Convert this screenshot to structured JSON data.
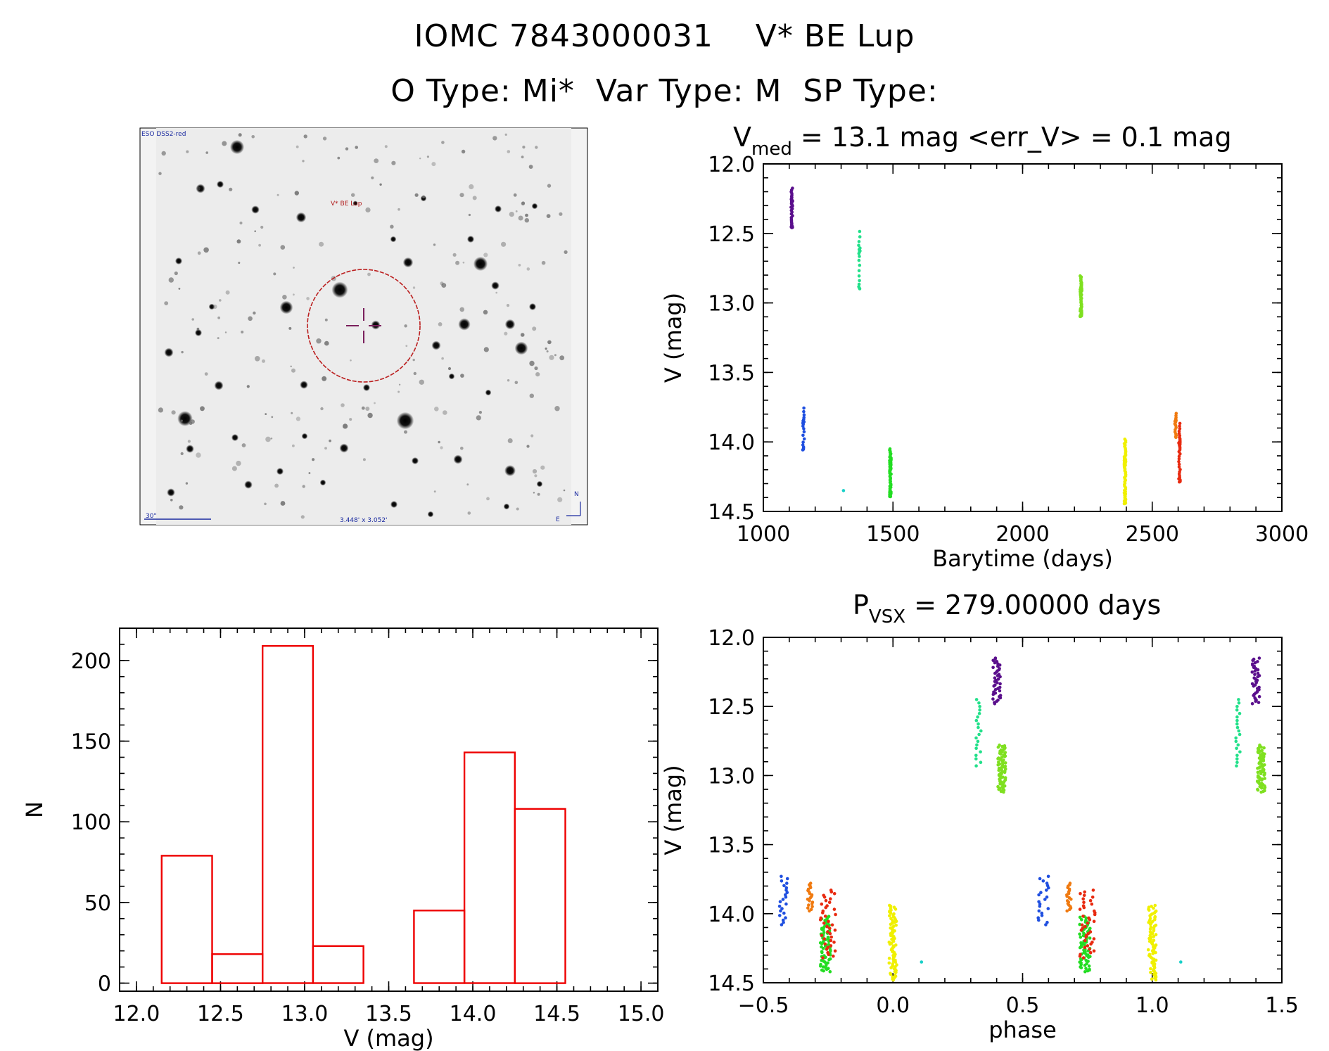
{
  "title_line1": "IOMC 7843000031    V* BE Lup",
  "title_line2": "O Type: Mi*  Var Type: M  SP Type:",
  "finder": {
    "survey_label": "ESO DSS2-red",
    "object_label": "V* BE Lup",
    "scale_label": "30\"",
    "fov_label": "3.448' x 3.052'",
    "north_label": "N",
    "east_label": "E"
  },
  "colors": {
    "hist": "#ee0000",
    "ring": "#bb1e1e",
    "cross": "#7a1f5c"
  },
  "chart_data": [
    {
      "type": "scatter",
      "name": "light-curve",
      "title_main": "V",
      "title_sub": "med",
      "title_rest": " = 13.1 mag <err_V> = 0.1 mag",
      "xlabel": "Barytime (days)",
      "ylabel": "V (mag)",
      "xlim": [
        1000,
        3000
      ],
      "ylim": [
        14.5,
        12.0
      ],
      "xticks": [
        1000,
        1500,
        2000,
        2500,
        3000
      ],
      "xtick_labels": [
        "1000",
        "1500",
        "2000",
        "2500",
        "3000"
      ],
      "yticks": [
        12.0,
        12.5,
        13.0,
        13.5,
        14.0,
        14.5
      ],
      "ytick_labels": [
        "12.0",
        "12.5",
        "13.0",
        "13.5",
        "14.0",
        "14.5"
      ],
      "groups": [
        {
          "t": 1110,
          "lo": 12.15,
          "hi": 12.48,
          "n": 40,
          "color": "#5a0f8c"
        },
        {
          "t": 1155,
          "lo": 13.73,
          "hi": 14.08,
          "n": 22,
          "color": "#1f4fe0"
        },
        {
          "t": 1310,
          "lo": 14.35,
          "hi": 14.35,
          "n": 1,
          "color": "#18d0c8"
        },
        {
          "t": 1370,
          "lo": 12.45,
          "hi": 12.93,
          "n": 20,
          "color": "#22e08a"
        },
        {
          "t": 1490,
          "lo": 14.02,
          "hi": 14.42,
          "n": 70,
          "color": "#22dd22"
        },
        {
          "t": 2225,
          "lo": 12.78,
          "hi": 13.12,
          "n": 70,
          "color": "#7fe020"
        },
        {
          "t": 2395,
          "lo": 13.94,
          "hi": 14.48,
          "n": 80,
          "color": "#f0f000"
        },
        {
          "t": 2590,
          "lo": 13.78,
          "hi": 13.98,
          "n": 20,
          "color": "#f07a10"
        },
        {
          "t": 2605,
          "lo": 13.83,
          "hi": 14.32,
          "n": 40,
          "color": "#e82a10"
        }
      ]
    },
    {
      "type": "scatter",
      "name": "phased-curve",
      "title_main": "P",
      "title_sub": "VSX",
      "title_rest": " = 279.00000 days",
      "xlabel": "phase",
      "ylabel": "V (mag)",
      "xlim": [
        -0.5,
        1.5
      ],
      "ylim": [
        14.5,
        12.0
      ],
      "xticks": [
        -0.5,
        0.0,
        0.5,
        1.0,
        1.5
      ],
      "xtick_labels": [
        "−0.5",
        "0.0",
        "0.5",
        "1.0",
        "1.5"
      ],
      "yticks": [
        12.0,
        12.5,
        13.0,
        13.5,
        14.0,
        14.5
      ],
      "ytick_labels": [
        "12.0",
        "12.5",
        "13.0",
        "13.5",
        "14.0",
        "14.5"
      ],
      "groups": [
        {
          "p": 0.4,
          "w": 0.03,
          "lo": 12.15,
          "hi": 12.48,
          "n": 40,
          "color": "#5a0f8c"
        },
        {
          "p": -0.42,
          "w": 0.04,
          "lo": 13.73,
          "hi": 14.08,
          "n": 22,
          "color": "#1f4fe0"
        },
        {
          "p": 0.11,
          "w": 0.0,
          "lo": 14.35,
          "hi": 14.35,
          "n": 1,
          "color": "#18d0c8"
        },
        {
          "p": 0.33,
          "w": 0.02,
          "lo": 12.45,
          "hi": 12.93,
          "n": 20,
          "color": "#22e08a"
        },
        {
          "p": -0.26,
          "w": 0.04,
          "lo": 14.02,
          "hi": 14.42,
          "n": 70,
          "color": "#22dd22"
        },
        {
          "p": 0.42,
          "w": 0.03,
          "lo": 12.78,
          "hi": 13.12,
          "n": 70,
          "color": "#7fe020"
        },
        {
          "p": 0.0,
          "w": 0.03,
          "lo": 13.94,
          "hi": 14.48,
          "n": 80,
          "color": "#f0f000"
        },
        {
          "p": -0.32,
          "w": 0.02,
          "lo": 13.78,
          "hi": 13.98,
          "n": 20,
          "color": "#f07a10"
        },
        {
          "p": -0.25,
          "w": 0.06,
          "lo": 13.83,
          "hi": 14.32,
          "n": 40,
          "color": "#e82a10"
        }
      ]
    },
    {
      "type": "bar",
      "name": "histogram",
      "title": "",
      "xlabel": "V (mag)",
      "ylabel": "N",
      "xlim": [
        11.9,
        15.1
      ],
      "ylim": [
        -5,
        220
      ],
      "xticks": [
        12.0,
        12.5,
        13.0,
        13.5,
        14.0,
        14.5,
        15.0
      ],
      "xtick_labels": [
        "12.0",
        "12.5",
        "13.0",
        "13.5",
        "14.0",
        "14.5",
        "15.0"
      ],
      "yticks": [
        0,
        50,
        100,
        150,
        200
      ],
      "ytick_labels": [
        "0",
        "50",
        "100",
        "150",
        "200"
      ],
      "bin_edges": [
        12.15,
        12.45,
        12.75,
        13.05,
        13.35,
        13.65,
        13.95,
        14.25,
        14.55
      ],
      "values": [
        79,
        18,
        209,
        23,
        0,
        45,
        143,
        108
      ]
    }
  ]
}
